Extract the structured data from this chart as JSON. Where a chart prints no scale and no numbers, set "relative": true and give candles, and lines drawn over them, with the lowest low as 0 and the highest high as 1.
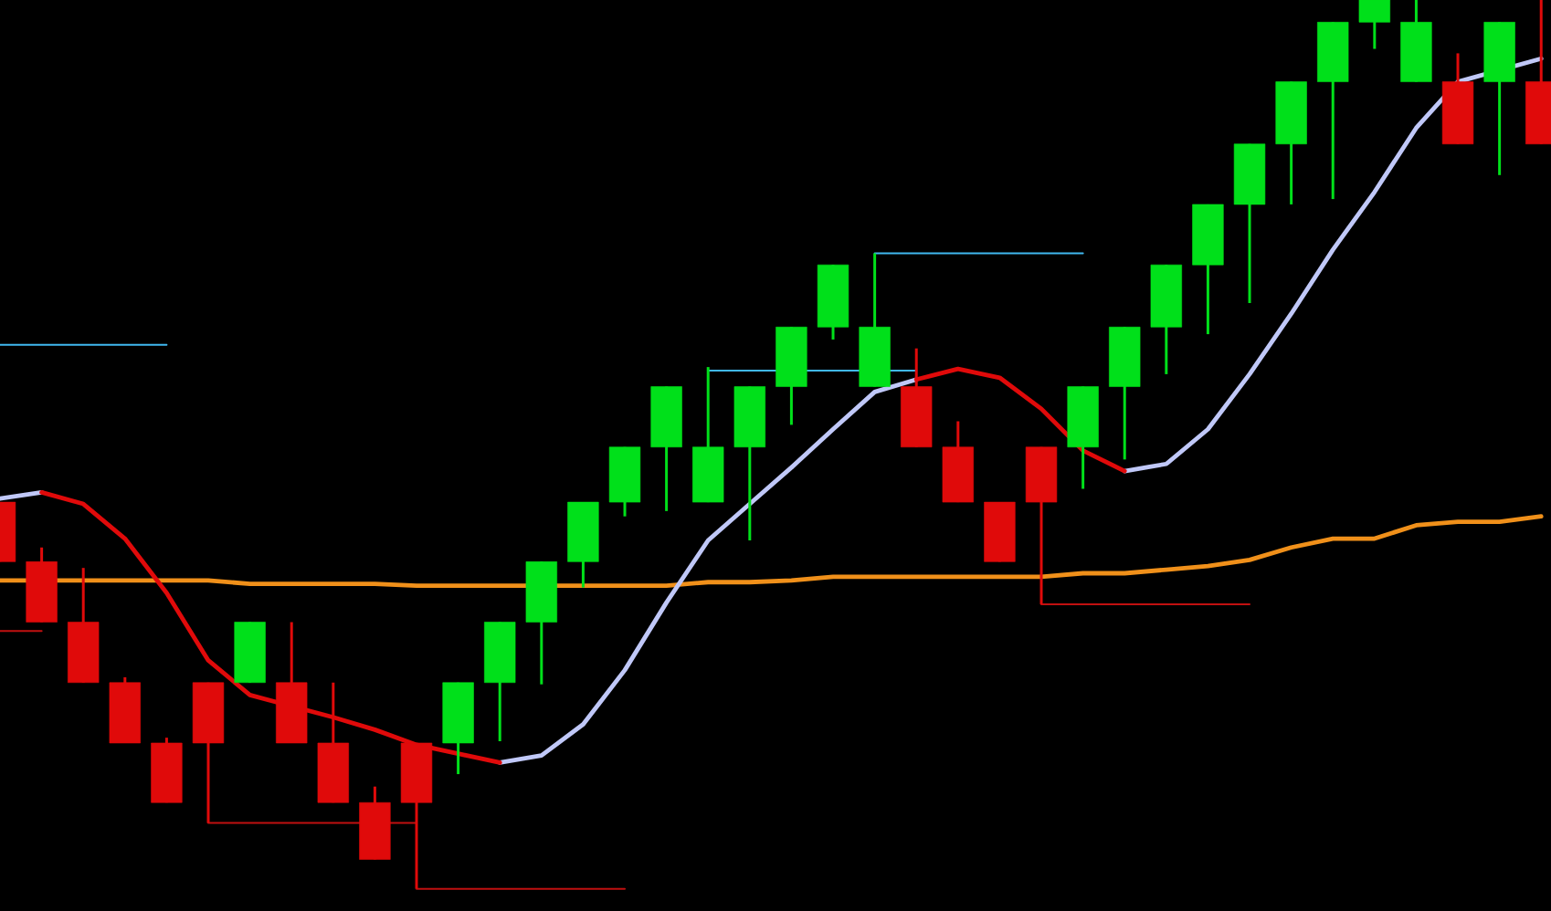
{
  "chart_data": {
    "type": "candlestick",
    "relative": true,
    "categories": [
      null,
      null,
      null,
      null,
      null,
      null,
      null,
      null,
      null,
      null,
      null,
      null,
      null,
      null,
      null,
      null,
      null,
      null,
      null,
      null,
      null,
      null,
      null,
      null,
      null,
      null,
      null,
      null,
      null,
      null,
      null,
      null,
      null,
      null,
      null,
      null,
      null,
      null
    ],
    "ohlc": [
      [
        0.435,
        0.435,
        0.368,
        0.368
      ],
      [
        0.368,
        0.384,
        0.3,
        0.3
      ],
      [
        0.3,
        0.361,
        0.232,
        0.232
      ],
      [
        0.232,
        0.238,
        0.164,
        0.164
      ],
      [
        0.164,
        0.17,
        0.097,
        0.097
      ],
      [
        0.232,
        0.232,
        0.074,
        0.164
      ],
      [
        0.232,
        0.3,
        0.232,
        0.3
      ],
      [
        0.232,
        0.3,
        0.164,
        0.164
      ],
      [
        0.164,
        0.232,
        0.097,
        0.097
      ],
      [
        0.097,
        0.115,
        0.033,
        0.033
      ],
      [
        0.164,
        0.164,
        0,
        0.097
      ],
      [
        0.164,
        0.232,
        0.129,
        0.232
      ],
      [
        0.232,
        0.3,
        0.166,
        0.3
      ],
      [
        0.3,
        0.368,
        0.23,
        0.368
      ],
      [
        0.368,
        0.435,
        0.339,
        0.435
      ],
      [
        0.435,
        0.497,
        0.419,
        0.497
      ],
      [
        0.497,
        0.565,
        0.425,
        0.565
      ],
      [
        0.435,
        0.587,
        0.435,
        0.497
      ],
      [
        0.497,
        0.565,
        0.392,
        0.565
      ],
      [
        0.565,
        0.632,
        0.522,
        0.632
      ],
      [
        0.632,
        0.702,
        0.618,
        0.702
      ],
      [
        0.565,
        0.715,
        0.565,
        0.632
      ],
      [
        0.565,
        0.608,
        0.497,
        0.497
      ],
      [
        0.497,
        0.526,
        0.435,
        0.435
      ],
      [
        0.435,
        0.435,
        0.368,
        0.368
      ],
      [
        0.497,
        0.497,
        0.32,
        0.435
      ],
      [
        0.497,
        0.565,
        0.45,
        0.565
      ],
      [
        0.565,
        0.632,
        0.483,
        0.632
      ],
      [
        0.632,
        0.702,
        0.579,
        0.702
      ],
      [
        0.702,
        0.77,
        0.624,
        0.77
      ],
      [
        0.77,
        0.838,
        0.659,
        0.838
      ],
      [
        0.838,
        0.908,
        0.77,
        0.908
      ],
      [
        0.908,
        0.975,
        0.776,
        0.975
      ],
      [
        0.975,
        1.0,
        0.945,
        1.0
      ],
      [
        0.908,
        1.0,
        0.908,
        0.975
      ],
      [
        0.908,
        0.94,
        0.838,
        0.838
      ],
      [
        0.908,
        0.975,
        0.803,
        0.975
      ],
      [
        0.908,
        1.0,
        0.838,
        0.838
      ]
    ],
    "colors": [
      "#e00a0a",
      "#e00a0a",
      "#e00a0a",
      "#e00a0a",
      "#e00a0a",
      "#e00a0a",
      "#00e01a",
      "#e00a0a",
      "#e00a0a",
      "#e00a0a",
      "#e00a0a",
      "#00e01a",
      "#00e01a",
      "#00e01a",
      "#00e01a",
      "#00e01a",
      "#00e01a",
      "#00e01a",
      "#00e01a",
      "#00e01a",
      "#00e01a",
      "#00e01a",
      "#e00a0a",
      "#e00a0a",
      "#e00a0a",
      "#e00a0a",
      "#00e01a",
      "#00e01a",
      "#00e01a",
      "#00e01a",
      "#00e01a",
      "#00e01a",
      "#00e01a",
      "#00e01a",
      "#00e01a",
      "#e00a0a",
      "#00e01a",
      "#e00a0a"
    ],
    "series": [
      {
        "type": "line",
        "color": "#f0901a",
        "values": [
          0.347,
          null,
          0.347,
          0.347,
          0.347,
          0.347,
          0.343,
          0.343,
          0.343,
          0.343,
          0.341,
          0.341,
          0.341,
          null,
          0.341,
          0.341,
          0.341,
          0.345,
          0.345,
          0.347,
          0.351,
          0.351,
          0.351,
          0.351,
          0.351,
          0.351,
          0.355,
          0.355,
          0.359,
          0.363,
          0.37,
          0.384,
          0.394,
          0.394,
          0.409,
          0.413,
          0.413,
          0.419
        ]
      },
      {
        "type": "line",
        "color": "#c0c8f8",
        "values": [
          0.439,
          0.446,
          null,
          null,
          null,
          null,
          null,
          null,
          null,
          null,
          null,
          null,
          0.142,
          0.15,
          0.185,
          0.246,
          0.322,
          0.392,
          0.433,
          0.474,
          0.517,
          0.559,
          0.573,
          null,
          null,
          null,
          null,
          0.47,
          0.478,
          0.517,
          0.579,
          0.647,
          0.719,
          0.784,
          0.856,
          0.908,
          null,
          0.934
        ]
      },
      {
        "type": "line",
        "color": "#e00a0a",
        "values": [
          null,
          0.446,
          0.433,
          0.394,
          0.333,
          0.257,
          0.218,
          null,
          0.193,
          0.179,
          0.162,
          0.152,
          0.142,
          null,
          null,
          null,
          null,
          null,
          null,
          null,
          null,
          null,
          0.573,
          0.585,
          0.575,
          0.54,
          0.493,
          0.47,
          null,
          null,
          null,
          null,
          null,
          null,
          null,
          null,
          null,
          null
        ]
      },
      {
        "type": "line",
        "color": "#40b8f0",
        "values": [
          0.612,
          0.612,
          0.612,
          0.612,
          0.612,
          null,
          null,
          null,
          null,
          null,
          null,
          null,
          null,
          null,
          null,
          null,
          null,
          null,
          null,
          null,
          null,
          null,
          null,
          null,
          null,
          null,
          null,
          null,
          null,
          null,
          null,
          null,
          null,
          null,
          null,
          null,
          null,
          null
        ]
      },
      {
        "type": "line",
        "color": "#40b8f0",
        "values": [
          null,
          null,
          null,
          null,
          null,
          null,
          null,
          null,
          null,
          null,
          null,
          null,
          null,
          null,
          null,
          null,
          null,
          0.583,
          0.583,
          null,
          0.583,
          null,
          0.583,
          null,
          null,
          null,
          null,
          null,
          null,
          null,
          null,
          null,
          null,
          null,
          null,
          null,
          null,
          null
        ]
      },
      {
        "type": "line",
        "color": "#40b8f0",
        "values": [
          null,
          null,
          null,
          null,
          null,
          null,
          null,
          null,
          null,
          null,
          null,
          null,
          null,
          null,
          null,
          null,
          null,
          null,
          null,
          null,
          null,
          0.715,
          0.715,
          0.715,
          0.715,
          0.715,
          0.715,
          null,
          null,
          null,
          null,
          null,
          null,
          null,
          null,
          null,
          null,
          null
        ]
      },
      {
        "type": "line",
        "color": "#c01010",
        "values": [
          0.29,
          0.29,
          null,
          null,
          null,
          null,
          null,
          null,
          null,
          null,
          null,
          null,
          null,
          null,
          null,
          null,
          null,
          null,
          null,
          null,
          null,
          null,
          null,
          null,
          null,
          null,
          null,
          null,
          null,
          null,
          null,
          null,
          null,
          null,
          null,
          null,
          null,
          null
        ]
      },
      {
        "type": "line",
        "color": "#c01010",
        "values": [
          null,
          null,
          null,
          null,
          null,
          0.074,
          0.074,
          0.074,
          0.074,
          0.074,
          0.074,
          null,
          null,
          null,
          null,
          null,
          null,
          null,
          null,
          null,
          null,
          null,
          null,
          null,
          null,
          null,
          null,
          null,
          null,
          null,
          null,
          null,
          null,
          null,
          null,
          null,
          null,
          null
        ]
      },
      {
        "type": "line",
        "color": "#c01010",
        "values": [
          null,
          null,
          null,
          null,
          null,
          null,
          null,
          null,
          null,
          null,
          0,
          0,
          0,
          0,
          0,
          0,
          null,
          null,
          null,
          null,
          null,
          null,
          null,
          null,
          null,
          null,
          null,
          null,
          null,
          null,
          null,
          null,
          null,
          null,
          null,
          null,
          null,
          null
        ]
      },
      {
        "type": "line",
        "color": "#c01010",
        "values": [
          null,
          null,
          null,
          null,
          null,
          null,
          null,
          null,
          null,
          null,
          null,
          null,
          null,
          null,
          null,
          null,
          null,
          null,
          null,
          null,
          null,
          null,
          null,
          null,
          null,
          0.32,
          0.32,
          0.32,
          0.32,
          0.32,
          0.32,
          null,
          null,
          null,
          null,
          null,
          null,
          null
        ]
      }
    ]
  }
}
